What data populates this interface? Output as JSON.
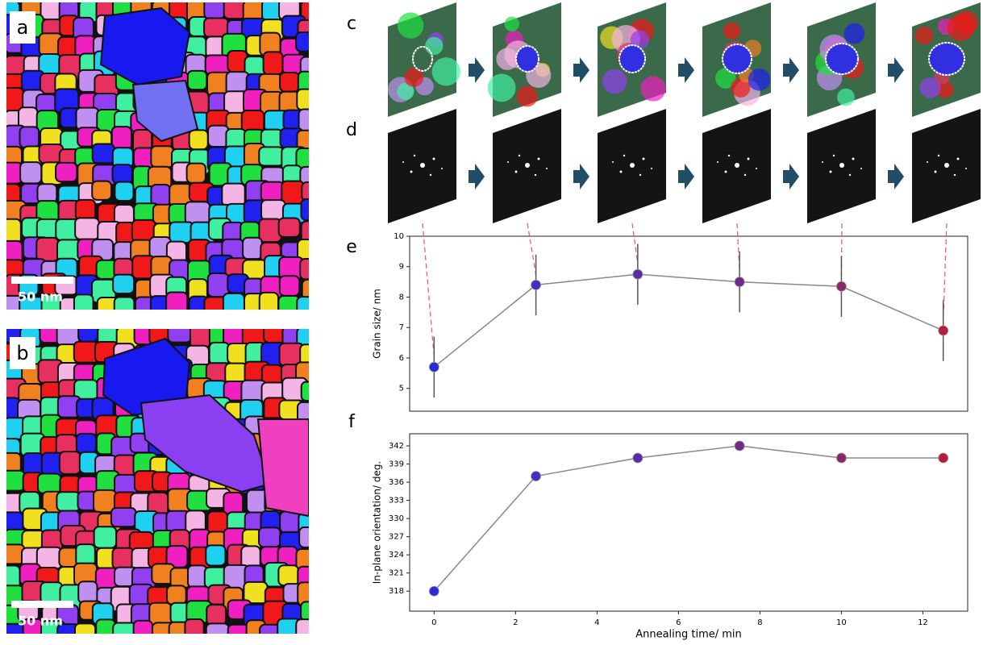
{
  "panel_labels": [
    "a",
    "b",
    "c",
    "d",
    "e",
    "f"
  ],
  "scale_bars": [
    "50 nm",
    "50 nm"
  ],
  "chart_data": [
    {
      "type": "errorbar-line",
      "ylabel": "Grain size/ nm",
      "x": [
        0,
        2.5,
        5,
        7.5,
        10,
        12.5
      ],
      "series": [
        {
          "values": [
            5.7,
            8.4,
            8.75,
            8.5,
            8.35,
            6.9
          ],
          "errors": [
            1.0,
            1.0,
            1.0,
            1.0,
            1.0,
            1.0
          ],
          "color": "#888888",
          "point_colors": [
            "#2a2ad8",
            "#4a2cc4",
            "#5a2caa",
            "#6e2a8c",
            "#8a2a6c",
            "#b41e3e"
          ]
        }
      ],
      "xlim": [
        -0.6,
        13.1
      ],
      "ylim": [
        4.25,
        10
      ],
      "yticks": [
        5,
        6,
        7,
        8,
        9,
        10
      ]
    },
    {
      "type": "line",
      "ylabel": "In-plane orientation/ deg.",
      "xlabel": "Annealing time/ min",
      "x": [
        0,
        2.5,
        5,
        7.5,
        10,
        12.5
      ],
      "series": [
        {
          "values": [
            318,
            337,
            340,
            342,
            340,
            340
          ],
          "color": "#888888",
          "point_colors": [
            "#2a2ad8",
            "#4a2cc4",
            "#5a2caa",
            "#6e2a8c",
            "#8a2a6c",
            "#b41e3e"
          ]
        }
      ],
      "xlim": [
        -0.6,
        13.1
      ],
      "ylim": [
        314.7,
        344
      ],
      "xticks": [
        0,
        2,
        4,
        6,
        8,
        10,
        12
      ],
      "yticks": [
        318,
        321,
        324,
        327,
        330,
        333,
        336,
        339,
        342
      ]
    }
  ]
}
